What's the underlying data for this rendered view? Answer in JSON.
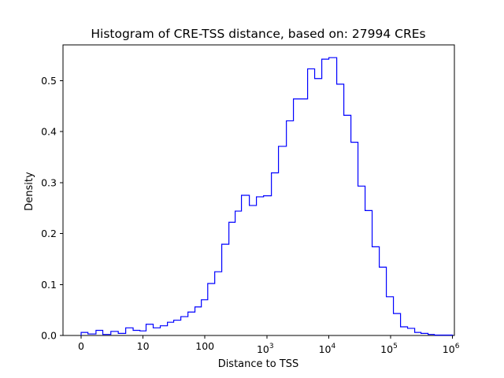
{
  "chart_data": {
    "type": "histogram-step",
    "title": "Histogram of CRE-TSS distance, based on: 27994 CREs",
    "xlabel": "Distance to TSS",
    "ylabel": "Density",
    "x_scale": "symlog",
    "linthresh": 10,
    "xlim_u": [
      -0.293,
      6.0305
    ],
    "ylim": [
      0,
      0.57
    ],
    "line_color": "#0000ff",
    "background_color": "#ffffff",
    "grid": false,
    "legend": "none",
    "x_ticks": [
      {
        "value": 0,
        "text": "0",
        "exp": ""
      },
      {
        "value": 10,
        "text": "10",
        "exp": ""
      },
      {
        "value": 100,
        "text": "100",
        "exp": ""
      },
      {
        "value": 1000,
        "text": "10",
        "exp": "3"
      },
      {
        "value": 10000,
        "text": "10",
        "exp": "4"
      },
      {
        "value": 100000,
        "text": "10",
        "exp": "5"
      },
      {
        "value": 1000000,
        "text": "10",
        "exp": "6"
      }
    ],
    "y_ticks": [
      {
        "value": 0.0,
        "text": "0.0"
      },
      {
        "value": 0.1,
        "text": "0.1"
      },
      {
        "value": 0.2,
        "text": "0.2"
      },
      {
        "value": 0.3,
        "text": "0.3"
      },
      {
        "value": 0.4,
        "text": "0.4"
      },
      {
        "value": 0.5,
        "text": "0.5"
      }
    ],
    "bin_edges": [
      0,
      1.1,
      2.4,
      3.5,
      4.8,
      6.0,
      7.2,
      8.4,
      9.5,
      11.2,
      14.6,
      19,
      24.8,
      31.3,
      40.8,
      53.2,
      69,
      87.5,
      111,
      144,
      187,
      244,
      308,
      389,
      522,
      679,
      885,
      1186,
      1542,
      2070,
      2690,
      3500,
      4560,
      5930,
      7730,
      10050,
      13480,
      17550,
      22850,
      29700,
      38700,
      50300,
      65600,
      85300,
      111000,
      144600,
      188000,
      245000,
      310000,
      403000,
      509000,
      1000000
    ],
    "densities": [
      0.006,
      0.003,
      0.01,
      0.002,
      0.008,
      0.004,
      0.015,
      0.01,
      0.009,
      0.022,
      0.015,
      0.019,
      0.026,
      0.03,
      0.037,
      0.046,
      0.056,
      0.07,
      0.102,
      0.125,
      0.179,
      0.222,
      0.244,
      0.275,
      0.255,
      0.272,
      0.274,
      0.319,
      0.371,
      0.421,
      0.464,
      0.464,
      0.523,
      0.504,
      0.542,
      0.545,
      0.493,
      0.432,
      0.379,
      0.293,
      0.245,
      0.174,
      0.134,
      0.076,
      0.043,
      0.017,
      0.014,
      0.006,
      0.004,
      0.002,
      0.0008
    ]
  }
}
